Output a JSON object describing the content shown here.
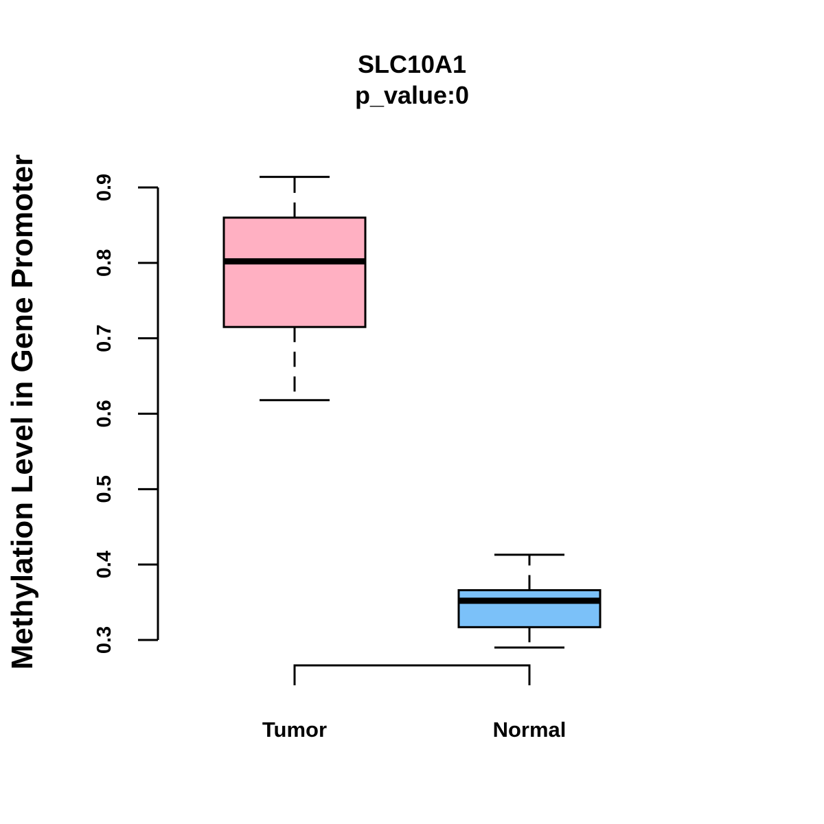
{
  "chart_data": {
    "type": "boxplot",
    "title": "SLC10A1",
    "subtitle": "p_value:0",
    "xlabel": "",
    "ylabel": "Methylation Level in Gene Promoter",
    "ylim": [
      0.3,
      0.9
    ],
    "yticks": [
      "0.3",
      "0.4",
      "0.5",
      "0.6",
      "0.7",
      "0.8",
      "0.9"
    ],
    "categories": [
      "Tumor",
      "Normal"
    ],
    "boxes": [
      {
        "name": "Tumor",
        "min": 0.618,
        "q1": 0.715,
        "median": 0.802,
        "q3": 0.86,
        "max": 0.914,
        "color": "#FFB0C2"
      },
      {
        "name": "Normal",
        "min": 0.29,
        "q1": 0.317,
        "median": 0.352,
        "q3": 0.366,
        "max": 0.413,
        "color": "#7BC1F9"
      }
    ],
    "comparison_bracket": [
      "Tumor",
      "Normal"
    ],
    "grid": false
  }
}
